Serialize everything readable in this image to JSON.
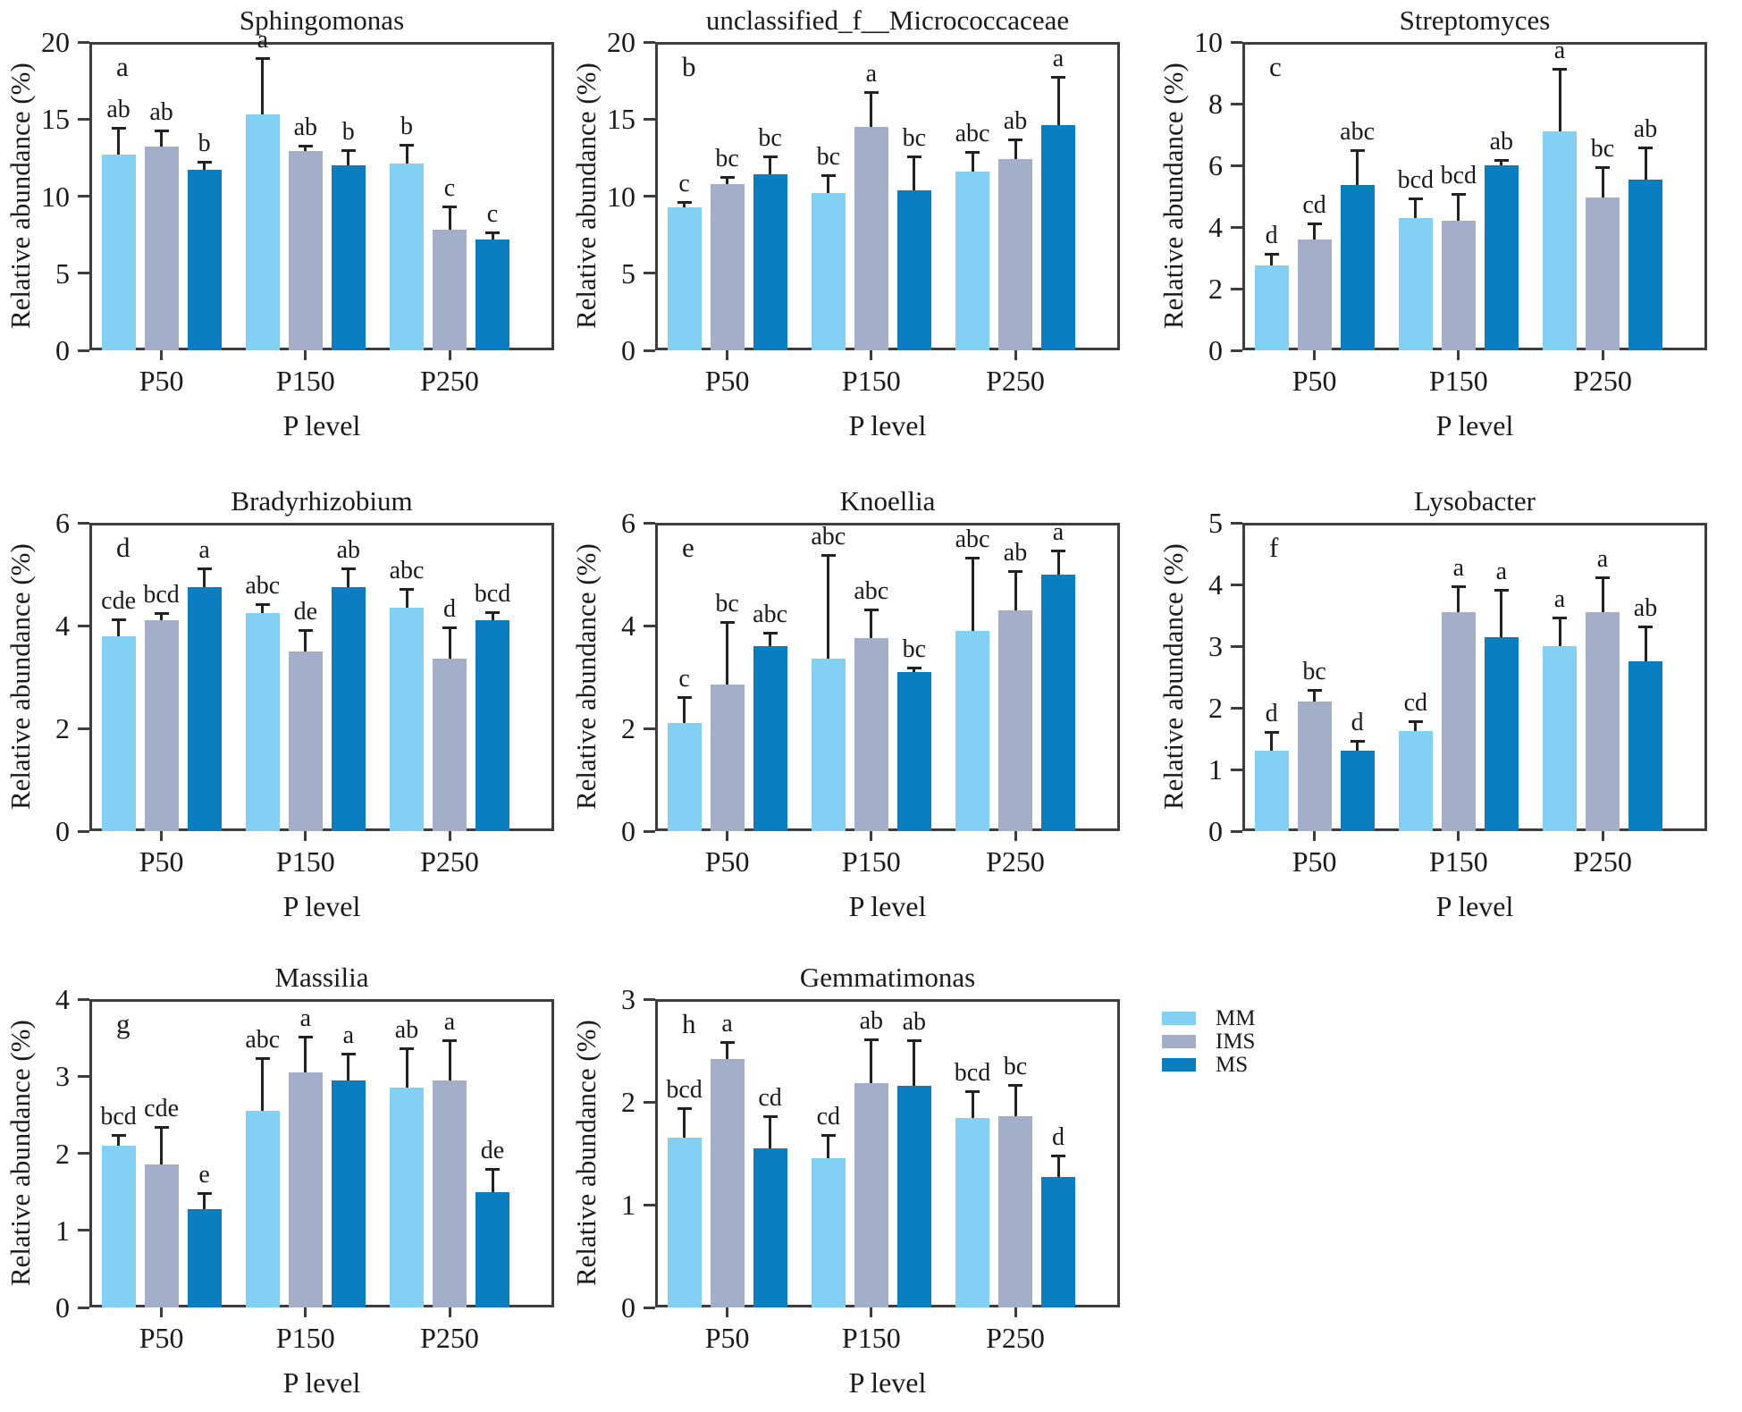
{
  "figure": {
    "ylabel": "Relative abundance (%)",
    "xlabel": "P level",
    "categories": [
      "P50",
      "P150",
      "P250"
    ]
  },
  "legend": {
    "items": [
      {
        "label": "MM",
        "color": "#82d1f5"
      },
      {
        "label": "IMS",
        "color": "#a3aec8"
      },
      {
        "label": "MS",
        "color": "#0b7ec1"
      }
    ]
  },
  "colors": {
    "axis": "#3d3d3d",
    "text": "#1a1a1a",
    "error_bar": "#222222"
  },
  "chart_data": [
    {
      "type": "bar",
      "panel_letter": "a",
      "title": "Sphingomonas",
      "xlabel": "P level",
      "ylabel": "Relative abundance (%)",
      "ylim": [
        0,
        20
      ],
      "yticks": [
        0,
        5,
        10,
        15,
        20
      ],
      "categories": [
        "P50",
        "P150",
        "P250"
      ],
      "series": [
        {
          "name": "MM",
          "values": [
            12.7,
            15.3,
            12.1
          ],
          "errors": [
            1.7,
            3.6,
            1.2
          ],
          "sig_letters": [
            "ab",
            "a",
            "b"
          ]
        },
        {
          "name": "IMS",
          "values": [
            13.2,
            12.9,
            7.8
          ],
          "errors": [
            1.0,
            0.3,
            1.5
          ],
          "sig_letters": [
            "ab",
            "ab",
            "c"
          ]
        },
        {
          "name": "MS",
          "values": [
            11.7,
            12.0,
            7.2
          ],
          "errors": [
            0.5,
            0.9,
            0.4
          ],
          "sig_letters": [
            "b",
            "b",
            "c"
          ]
        }
      ]
    },
    {
      "type": "bar",
      "panel_letter": "b",
      "title": "unclassified_f__Micrococcaceae",
      "xlabel": "P level",
      "ylabel": "Relative abundance (%)",
      "ylim": [
        0,
        20
      ],
      "yticks": [
        0,
        5,
        10,
        15,
        20
      ],
      "categories": [
        "P50",
        "P150",
        "P250"
      ],
      "texture_series": [
        "IMS"
      ],
      "series": [
        {
          "name": "MM",
          "values": [
            9.3,
            10.2,
            11.6
          ],
          "errors": [
            0.25,
            1.1,
            1.2
          ],
          "sig_letters": [
            "c",
            "bc",
            "abc"
          ]
        },
        {
          "name": "IMS",
          "values": [
            10.8,
            14.5,
            12.4
          ],
          "errors": [
            0.4,
            2.2,
            1.2
          ],
          "sig_letters": [
            "bc",
            "a",
            "ab"
          ]
        },
        {
          "name": "MS",
          "values": [
            11.4,
            10.4,
            14.6
          ],
          "errors": [
            1.1,
            2.1,
            3.1
          ],
          "sig_letters": [
            "bc",
            "bc",
            "a"
          ]
        }
      ]
    },
    {
      "type": "bar",
      "panel_letter": "c",
      "title": "Streptomyces",
      "xlabel": "P level",
      "ylabel": "Relative abundance (%)",
      "ylim": [
        0,
        10
      ],
      "yticks": [
        0,
        2,
        4,
        6,
        8,
        10
      ],
      "categories": [
        "P50",
        "P150",
        "P250"
      ],
      "series": [
        {
          "name": "MM",
          "values": [
            2.75,
            4.3,
            7.1
          ],
          "errors": [
            0.35,
            0.6,
            2.0
          ],
          "sig_letters": [
            "d",
            "bcd",
            "a"
          ]
        },
        {
          "name": "IMS",
          "values": [
            3.6,
            4.2,
            4.95
          ],
          "errors": [
            0.5,
            0.85,
            0.95
          ],
          "sig_letters": [
            "cd",
            "bcd",
            "bc"
          ]
        },
        {
          "name": "MS",
          "values": [
            5.35,
            6.0,
            5.55
          ],
          "errors": [
            1.1,
            0.15,
            1.0
          ],
          "sig_letters": [
            "abc",
            "ab",
            "ab"
          ]
        }
      ]
    },
    {
      "type": "bar",
      "panel_letter": "d",
      "title": "Bradyrhizobium",
      "xlabel": "P level",
      "ylabel": "Relative abundance (%)",
      "ylim": [
        0,
        6
      ],
      "yticks": [
        0,
        2,
        4,
        6
      ],
      "categories": [
        "P50",
        "P150",
        "P250"
      ],
      "series": [
        {
          "name": "MM",
          "values": [
            3.8,
            4.25,
            4.35
          ],
          "errors": [
            0.3,
            0.15,
            0.35
          ],
          "sig_letters": [
            "cde",
            "abc",
            "abc"
          ]
        },
        {
          "name": "IMS",
          "values": [
            4.1,
            3.5,
            3.35
          ],
          "errors": [
            0.12,
            0.4,
            0.6
          ],
          "sig_letters": [
            "bcd",
            "de",
            "d"
          ]
        },
        {
          "name": "MS",
          "values": [
            4.75,
            4.75,
            4.1
          ],
          "errors": [
            0.35,
            0.35,
            0.15
          ],
          "sig_letters": [
            "a",
            "ab",
            "bcd"
          ]
        }
      ]
    },
    {
      "type": "bar",
      "panel_letter": "e",
      "title": "Knoellia",
      "xlabel": "P level",
      "ylabel": "Relative abundance (%)",
      "ylim": [
        0,
        6
      ],
      "yticks": [
        0,
        2,
        4,
        6
      ],
      "categories": [
        "P50",
        "P150",
        "P250"
      ],
      "series": [
        {
          "name": "MM",
          "values": [
            2.1,
            3.35,
            3.9
          ],
          "errors": [
            0.5,
            2.0,
            1.4
          ],
          "sig_letters": [
            "c",
            "abc",
            "abc"
          ]
        },
        {
          "name": "IMS",
          "values": [
            2.85,
            3.75,
            4.3
          ],
          "errors": [
            1.2,
            0.55,
            0.75
          ],
          "sig_letters": [
            "bc",
            "abc",
            "ab"
          ]
        },
        {
          "name": "MS",
          "values": [
            3.6,
            3.1,
            5.0
          ],
          "errors": [
            0.25,
            0.07,
            0.45
          ],
          "sig_letters": [
            "abc",
            "bc",
            "a"
          ]
        }
      ]
    },
    {
      "type": "bar",
      "panel_letter": "f",
      "title": "Lysobacter",
      "xlabel": "P level",
      "ylabel": "Relative abundance (%)",
      "ylim": [
        0,
        5
      ],
      "yticks": [
        0,
        1,
        2,
        3,
        4,
        5
      ],
      "categories": [
        "P50",
        "P150",
        "P250"
      ],
      "series": [
        {
          "name": "MM",
          "values": [
            1.3,
            1.62,
            3.0
          ],
          "errors": [
            0.3,
            0.15,
            0.45
          ],
          "sig_letters": [
            "d",
            "cd",
            "a"
          ]
        },
        {
          "name": "IMS",
          "values": [
            2.1,
            3.55,
            3.55
          ],
          "errors": [
            0.18,
            0.4,
            0.55
          ],
          "sig_letters": [
            "bc",
            "a",
            "a"
          ]
        },
        {
          "name": "MS",
          "values": [
            1.3,
            3.15,
            2.75
          ],
          "errors": [
            0.15,
            0.75,
            0.55
          ],
          "sig_letters": [
            "d",
            "a",
            "ab"
          ]
        }
      ]
    },
    {
      "type": "bar",
      "panel_letter": "g",
      "title": "Massilia",
      "xlabel": "P level",
      "ylabel": "Relative abundance (%)",
      "ylim": [
        0,
        4
      ],
      "yticks": [
        0,
        1,
        2,
        3,
        4
      ],
      "categories": [
        "P50",
        "P150",
        "P250"
      ],
      "series": [
        {
          "name": "MM",
          "values": [
            2.1,
            2.55,
            2.85
          ],
          "errors": [
            0.13,
            0.67,
            0.5
          ],
          "sig_letters": [
            "bcd",
            "abc",
            "ab"
          ]
        },
        {
          "name": "IMS",
          "values": [
            1.85,
            3.05,
            2.95
          ],
          "errors": [
            0.48,
            0.45,
            0.5
          ],
          "sig_letters": [
            "cde",
            "a",
            "a"
          ]
        },
        {
          "name": "MS",
          "values": [
            1.27,
            2.95,
            1.5
          ],
          "errors": [
            0.2,
            0.33,
            0.28
          ],
          "sig_letters": [
            "e",
            "a",
            "de"
          ]
        }
      ]
    },
    {
      "type": "bar",
      "panel_letter": "h",
      "title": "Gemmatimonas",
      "xlabel": "P level",
      "ylabel": "Relative abundance (%)",
      "ylim": [
        0,
        3
      ],
      "yticks": [
        0,
        1,
        2,
        3
      ],
      "categories": [
        "P50",
        "P150",
        "P250"
      ],
      "series": [
        {
          "name": "MM",
          "values": [
            1.65,
            1.45,
            1.84
          ],
          "errors": [
            0.28,
            0.22,
            0.26
          ],
          "sig_letters": [
            "bcd",
            "cd",
            "bcd"
          ]
        },
        {
          "name": "IMS",
          "values": [
            2.42,
            2.18,
            1.86
          ],
          "errors": [
            0.15,
            0.42,
            0.3
          ],
          "sig_letters": [
            "a",
            "ab",
            "bc"
          ]
        },
        {
          "name": "MS",
          "values": [
            1.55,
            2.16,
            1.27
          ],
          "errors": [
            0.3,
            0.43,
            0.2
          ],
          "sig_letters": [
            "cd",
            "ab",
            "d"
          ]
        }
      ]
    }
  ]
}
